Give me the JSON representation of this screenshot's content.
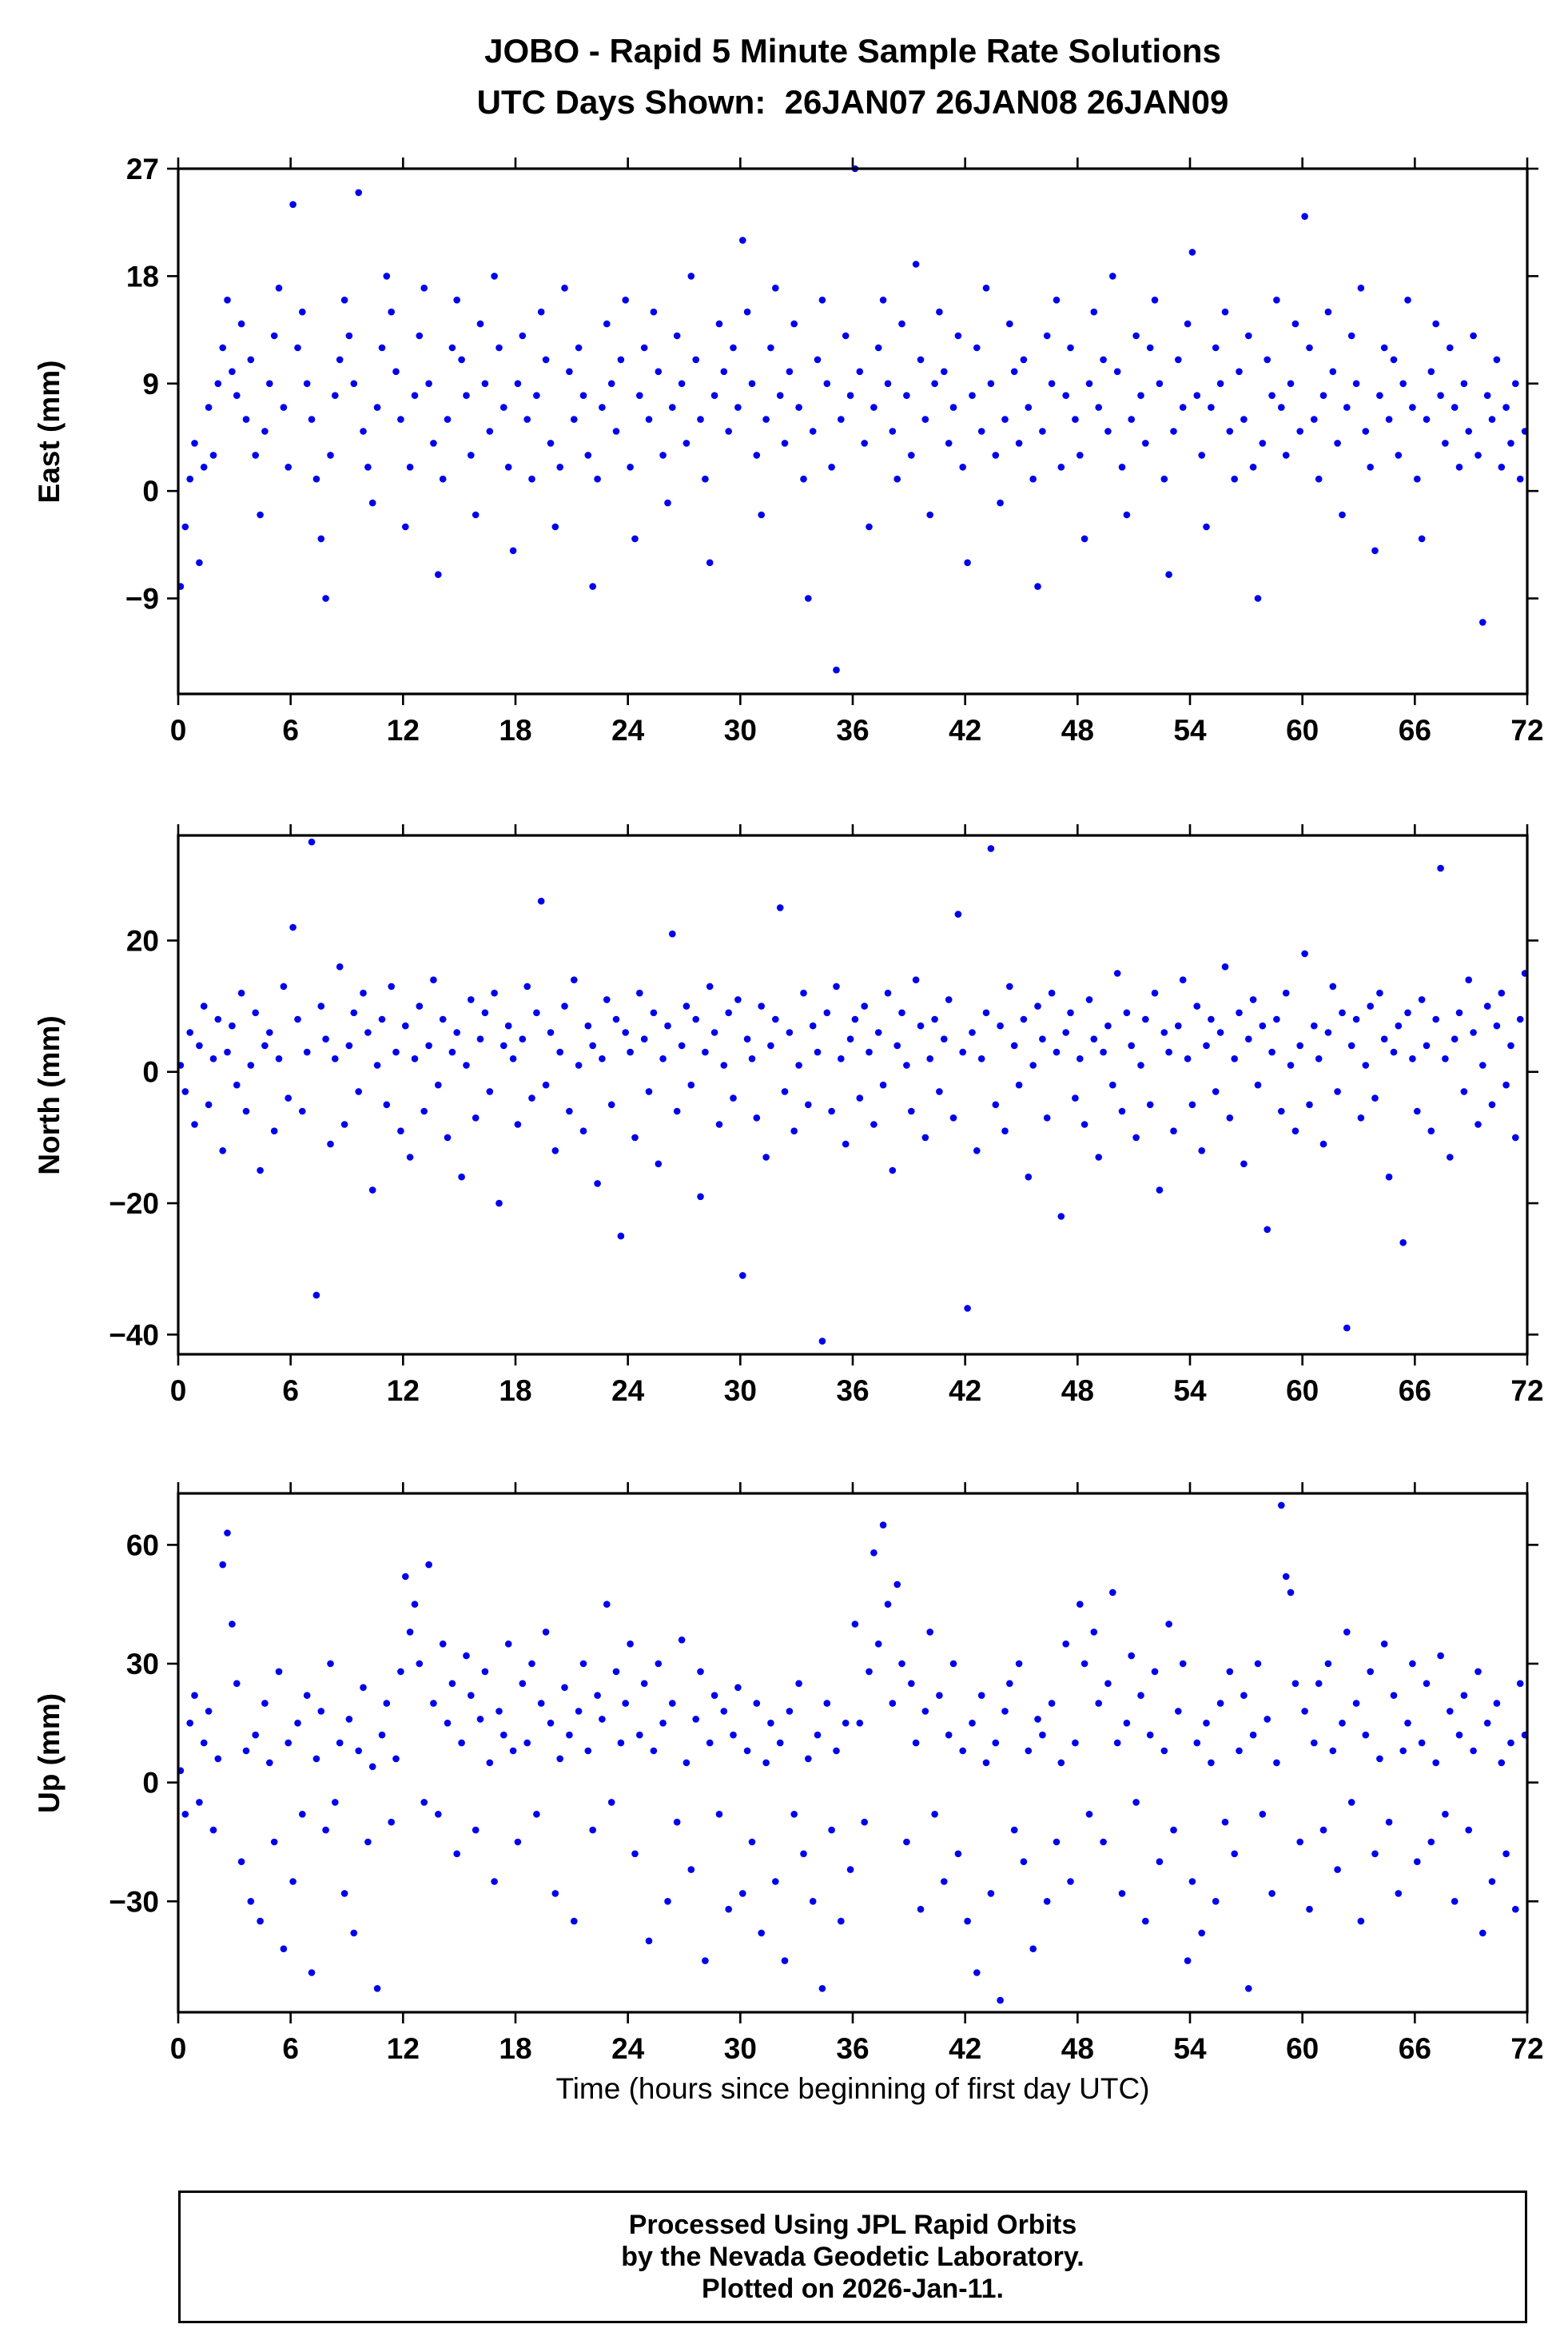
{
  "title": {
    "line1": "JOBO - Rapid 5 Minute Sample Rate Solutions",
    "line2": "UTC Days Shown:  26JAN07 26JAN08 26JAN09"
  },
  "xlabel": "Time (hours since beginning of first day UTC)",
  "footer": {
    "line1": "Processed Using JPL Rapid Orbits",
    "line2": "by the Nevada Geodetic Laboratory.",
    "line3": "Plotted on 2026-Jan-11."
  },
  "colors": {
    "marker": "#0000EE",
    "frame": "#000000"
  },
  "chart_data": [
    {
      "type": "scatter",
      "ylabel": "East (mm)",
      "xlim": [
        0,
        72
      ],
      "xticks": [
        0,
        6,
        12,
        18,
        24,
        30,
        36,
        42,
        48,
        54,
        60,
        66,
        72
      ],
      "ylim": [
        -17,
        27
      ],
      "yticks": [
        27,
        18,
        9,
        0,
        -9
      ],
      "values": [
        -8,
        -3,
        1,
        4,
        -6,
        2,
        7,
        3,
        9,
        12,
        16,
        10,
        8,
        14,
        6,
        11,
        3,
        -2,
        5,
        9,
        13,
        17,
        7,
        2,
        24,
        12,
        15,
        9,
        6,
        1,
        -4,
        -9,
        3,
        8,
        11,
        16,
        13,
        9,
        25,
        5,
        2,
        -1,
        7,
        12,
        18,
        15,
        10,
        6,
        -3,
        2,
        8,
        13,
        17,
        9,
        4,
        -7,
        1,
        6,
        12,
        16,
        11,
        8,
        3,
        -2,
        14,
        9,
        5,
        18,
        12,
        7,
        2,
        -5,
        9,
        13,
        6,
        1,
        8,
        15,
        11,
        4,
        -3,
        2,
        17,
        10,
        6,
        12,
        8,
        3,
        -8,
        1,
        7,
        14,
        9,
        5,
        11,
        16,
        2,
        -4,
        8,
        12,
        6,
        15,
        10,
        3,
        -1,
        7,
        13,
        9,
        4,
        18,
        11,
        6,
        1,
        -6,
        8,
        14,
        10,
        5,
        12,
        7,
        21,
        15,
        9,
        3,
        -2,
        6,
        12,
        17,
        8,
        4,
        10,
        14,
        7,
        1,
        -9,
        5,
        11,
        16,
        9,
        2,
        -15,
        6,
        13,
        8,
        27,
        10,
        4,
        -3,
        7,
        12,
        16,
        9,
        5,
        1,
        14,
        8,
        3,
        19,
        11,
        6,
        -2,
        9,
        15,
        10,
        4,
        7,
        13,
        2,
        -6,
        8,
        12,
        5,
        17,
        9,
        3,
        -1,
        6,
        14,
        10,
        4,
        11,
        7,
        1,
        -8,
        5,
        13,
        9,
        16,
        2,
        8,
        12,
        6,
        3,
        -4,
        9,
        15,
        7,
        11,
        5,
        18,
        10,
        2,
        -2,
        6,
        13,
        8,
        4,
        12,
        16,
        9,
        1,
        -7,
        5,
        11,
        7,
        14,
        20,
        8,
        3,
        -3,
        7,
        12,
        9,
        15,
        5,
        1,
        10,
        6,
        13,
        2,
        -9,
        4,
        11,
        8,
        16,
        7,
        3,
        9,
        14,
        5,
        23,
        12,
        6,
        1,
        8,
        15,
        10,
        4,
        -2,
        7,
        13,
        9,
        17,
        5,
        2,
        -5,
        8,
        12,
        6,
        11,
        3,
        9,
        16,
        7,
        1,
        -4,
        6,
        10,
        14,
        8,
        4,
        12,
        7,
        2,
        9,
        5,
        13,
        3,
        -11,
        8,
        6,
        11,
        2,
        7,
        4,
        9,
        1,
        5
      ]
    },
    {
      "type": "scatter",
      "ylabel": "North (mm)",
      "xlim": [
        0,
        72
      ],
      "xticks": [
        0,
        6,
        12,
        18,
        24,
        30,
        36,
        42,
        48,
        54,
        60,
        66,
        72
      ],
      "ylim": [
        -43,
        36
      ],
      "yticks": [
        20,
        0,
        -20,
        -40
      ],
      "values": [
        1,
        -3,
        6,
        -8,
        4,
        10,
        -5,
        2,
        8,
        -12,
        3,
        7,
        -2,
        12,
        -6,
        1,
        9,
        -15,
        4,
        6,
        -9,
        2,
        13,
        -4,
        22,
        8,
        -6,
        3,
        35,
        -34,
        10,
        5,
        -11,
        2,
        16,
        -8,
        4,
        9,
        -3,
        12,
        6,
        -18,
        1,
        8,
        -5,
        13,
        3,
        -9,
        7,
        -13,
        2,
        10,
        -6,
        4,
        14,
        -2,
        8,
        -10,
        3,
        6,
        -16,
        1,
        11,
        -7,
        5,
        9,
        -3,
        12,
        -20,
        4,
        7,
        2,
        -8,
        5,
        13,
        -4,
        9,
        26,
        -2,
        6,
        -12,
        3,
        10,
        -6,
        14,
        1,
        -9,
        7,
        4,
        -17,
        2,
        11,
        -5,
        8,
        -25,
        6,
        3,
        -10,
        12,
        5,
        -3,
        9,
        -14,
        2,
        7,
        21,
        -6,
        4,
        10,
        -2,
        8,
        -19,
        3,
        13,
        6,
        -8,
        1,
        9,
        -4,
        11,
        -31,
        5,
        2,
        -7,
        10,
        -13,
        4,
        8,
        25,
        -3,
        6,
        -9,
        1,
        12,
        -5,
        7,
        3,
        -41,
        9,
        -6,
        13,
        2,
        -11,
        5,
        8,
        -4,
        10,
        3,
        -8,
        6,
        -2,
        12,
        -15,
        4,
        9,
        1,
        -6,
        14,
        7,
        -10,
        2,
        8,
        -3,
        5,
        11,
        -7,
        24,
        3,
        -36,
        6,
        -12,
        2,
        9,
        34,
        -5,
        7,
        -9,
        13,
        4,
        -2,
        8,
        -16,
        1,
        10,
        5,
        -7,
        12,
        3,
        -22,
        6,
        9,
        -4,
        2,
        -8,
        11,
        5,
        -13,
        3,
        7,
        -2,
        15,
        -6,
        9,
        4,
        -10,
        1,
        8,
        -5,
        12,
        -18,
        6,
        3,
        -9,
        7,
        14,
        2,
        -5,
        10,
        -12,
        4,
        8,
        -3,
        6,
        16,
        -7,
        2,
        9,
        -14,
        5,
        11,
        -2,
        7,
        -24,
        3,
        8,
        -6,
        12,
        1,
        -9,
        4,
        18,
        -5,
        7,
        2,
        -11,
        6,
        13,
        -3,
        9,
        -39,
        4,
        8,
        -7,
        1,
        10,
        -4,
        12,
        5,
        -16,
        3,
        7,
        -26,
        9,
        2,
        -6,
        11,
        4,
        -9,
        8,
        31,
        2,
        -13,
        5,
        9,
        -3,
        14,
        6,
        -8,
        1,
        10,
        -5,
        7,
        12,
        -2,
        4,
        -10,
        8,
        15
      ]
    },
    {
      "type": "scatter",
      "ylabel": "Up (mm)",
      "xlim": [
        0,
        72
      ],
      "xticks": [
        0,
        6,
        12,
        18,
        24,
        30,
        36,
        42,
        48,
        54,
        60,
        66,
        72
      ],
      "ylim": [
        -58,
        73
      ],
      "yticks": [
        60,
        30,
        0,
        -30
      ],
      "values": [
        3,
        -8,
        15,
        22,
        -5,
        10,
        18,
        -12,
        6,
        55,
        63,
        40,
        25,
        -20,
        8,
        -30,
        12,
        -35,
        20,
        5,
        -15,
        28,
        -42,
        10,
        -25,
        15,
        -8,
        22,
        -48,
        6,
        18,
        -12,
        30,
        -5,
        10,
        -28,
        16,
        -38,
        8,
        24,
        -15,
        4,
        -52,
        12,
        20,
        -10,
        6,
        28,
        52,
        38,
        45,
        30,
        -5,
        55,
        20,
        -8,
        35,
        15,
        25,
        -18,
        10,
        32,
        22,
        -12,
        16,
        28,
        5,
        -25,
        18,
        12,
        35,
        8,
        -15,
        25,
        10,
        30,
        -8,
        20,
        38,
        15,
        -28,
        6,
        24,
        12,
        -35,
        18,
        30,
        8,
        -12,
        22,
        16,
        45,
        -5,
        28,
        10,
        20,
        35,
        -18,
        12,
        25,
        -40,
        8,
        30,
        15,
        -30,
        20,
        -10,
        36,
        5,
        -22,
        16,
        28,
        -45,
        10,
        22,
        -8,
        18,
        -32,
        12,
        24,
        -28,
        8,
        -15,
        20,
        -38,
        5,
        15,
        -25,
        10,
        -45,
        18,
        -8,
        25,
        -18,
        6,
        -30,
        12,
        -52,
        20,
        -12,
        8,
        -35,
        15,
        -22,
        40,
        15,
        -10,
        28,
        58,
        35,
        65,
        45,
        20,
        50,
        30,
        -15,
        25,
        10,
        -32,
        18,
        38,
        -8,
        22,
        -25,
        12,
        30,
        -18,
        8,
        -35,
        15,
        -48,
        22,
        5,
        -28,
        10,
        -55,
        18,
        25,
        -12,
        30,
        -20,
        8,
        -42,
        16,
        12,
        -30,
        20,
        -15,
        5,
        35,
        -25,
        10,
        45,
        30,
        -8,
        38,
        20,
        -15,
        25,
        48,
        10,
        -28,
        15,
        32,
        -5,
        22,
        -35,
        12,
        28,
        -20,
        8,
        40,
        -12,
        18,
        30,
        -45,
        -25,
        10,
        -38,
        15,
        5,
        -30,
        20,
        -10,
        28,
        -18,
        8,
        22,
        -52,
        12,
        30,
        -8,
        16,
        -28,
        5,
        70,
        52,
        48,
        25,
        -15,
        18,
        -32,
        10,
        25,
        -12,
        30,
        8,
        -22,
        15,
        38,
        -5,
        20,
        -35,
        12,
        28,
        -18,
        6,
        35,
        -10,
        22,
        -28,
        8,
        15,
        30,
        -20,
        10,
        25,
        -15,
        5,
        32,
        -8,
        18,
        -30,
        12,
        22,
        -12,
        8,
        28,
        -38,
        15,
        -25,
        20,
        5,
        -18,
        10,
        -32,
        25,
        12
      ]
    }
  ]
}
